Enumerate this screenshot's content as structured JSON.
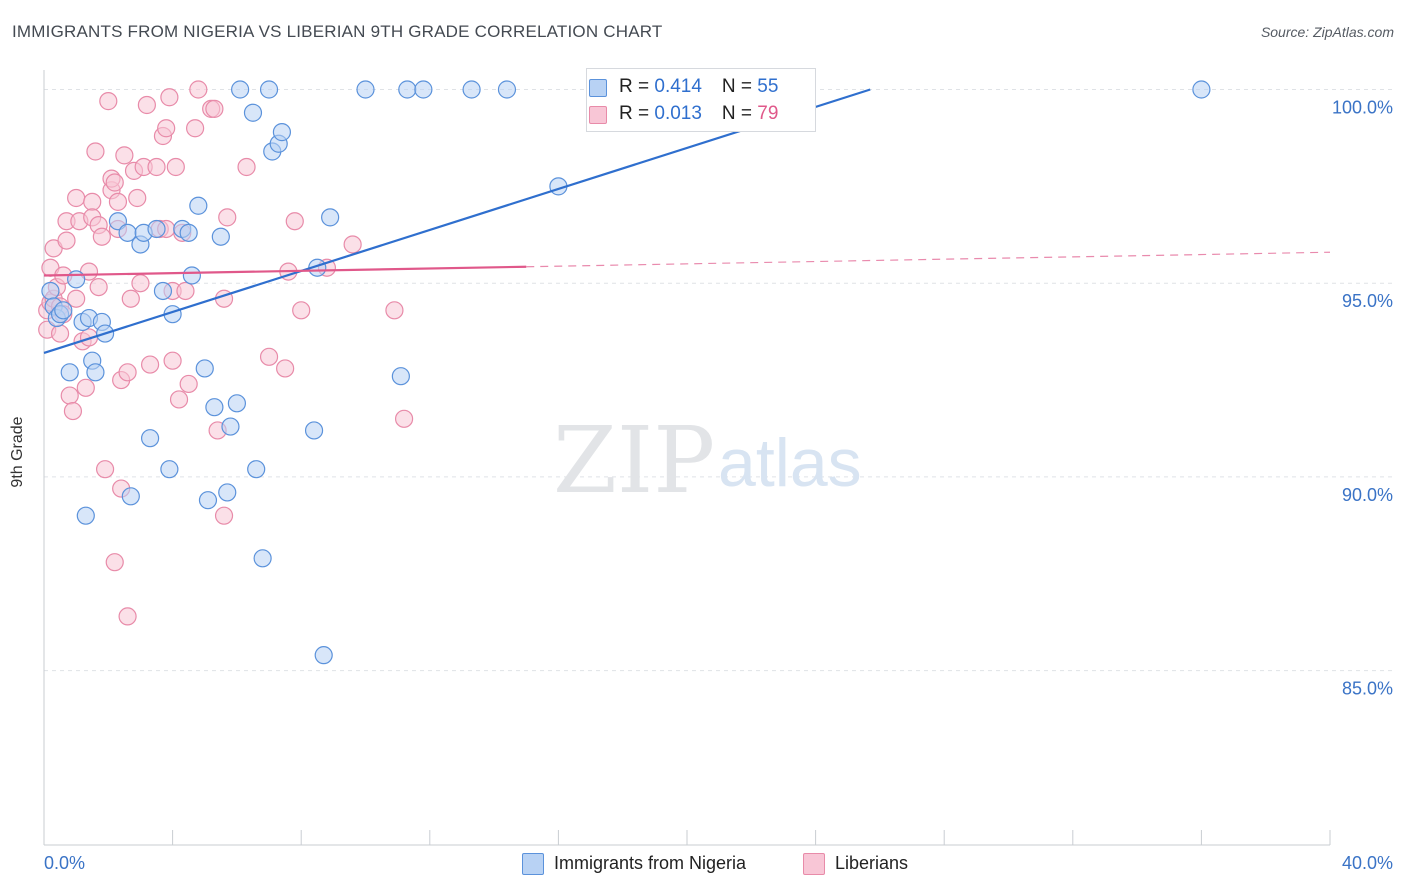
{
  "header": {
    "title": "IMMIGRANTS FROM NIGERIA VS LIBERIAN 9TH GRADE CORRELATION CHART",
    "source": "Source: ZipAtlas.com"
  },
  "watermark": {
    "zip": "ZIP",
    "atlas": "atlas"
  },
  "colors": {
    "blue_fill": "#b8d2f4",
    "blue_stroke": "#5b92db",
    "blue_line": "#2f6fce",
    "pink_fill": "#f8c6d6",
    "pink_stroke": "#e88ba9",
    "pink_line": "#e0588a",
    "tick_label": "#3a73c6"
  },
  "legend": {
    "rows": [
      {
        "r_label": "R = ",
        "r_value": "0.414",
        "n_label": "N = ",
        "n_value": "55"
      },
      {
        "r_label": "R = ",
        "r_value": "0.013",
        "n_label": "N = ",
        "n_value": "79"
      }
    ]
  },
  "bottom_legend": {
    "series1": "Immigrants from Nigeria",
    "series2": "Liberians"
  },
  "chart_data": {
    "type": "scatter",
    "title": "IMMIGRANTS FROM NIGERIA VS LIBERIAN 9TH GRADE CORRELATION CHART",
    "xlabel": "",
    "ylabel": "9th Grade",
    "xlim": [
      0,
      40
    ],
    "ylim": [
      80.5,
      100.4
    ],
    "x_tick_labels": [
      {
        "value": 0,
        "label": "0.0%"
      },
      {
        "value": 40,
        "label": "40.0%"
      }
    ],
    "y_tick_labels": [
      {
        "value": 100,
        "label": "100.0%"
      },
      {
        "value": 95,
        "label": "95.0%"
      },
      {
        "value": 90,
        "label": "90.0%"
      },
      {
        "value": 85,
        "label": "85.0%"
      }
    ],
    "series": [
      {
        "name": "Immigrants from Nigeria",
        "color": "blue",
        "r": 0.414,
        "n": 55,
        "trend": {
          "x0": 0,
          "y0": 93.2,
          "x1": 25.7,
          "y1": 100,
          "solid_to": 25.7
        },
        "points": [
          [
            0.2,
            94.8
          ],
          [
            0.3,
            94.4
          ],
          [
            0.4,
            94.1
          ],
          [
            0.5,
            94.2
          ],
          [
            0.6,
            94.3
          ],
          [
            0.8,
            92.7
          ],
          [
            1.0,
            95.1
          ],
          [
            1.2,
            94.0
          ],
          [
            1.3,
            89.0
          ],
          [
            1.4,
            94.1
          ],
          [
            1.5,
            93.0
          ],
          [
            1.6,
            92.7
          ],
          [
            1.8,
            94.0
          ],
          [
            1.9,
            93.7
          ],
          [
            2.3,
            96.6
          ],
          [
            2.6,
            96.3
          ],
          [
            2.7,
            89.5
          ],
          [
            3.0,
            96.0
          ],
          [
            3.1,
            96.3
          ],
          [
            3.3,
            91.0
          ],
          [
            3.5,
            96.4
          ],
          [
            3.7,
            94.8
          ],
          [
            3.9,
            90.2
          ],
          [
            4.0,
            94.2
          ],
          [
            4.3,
            96.4
          ],
          [
            4.5,
            96.3
          ],
          [
            4.6,
            95.2
          ],
          [
            4.8,
            97.0
          ],
          [
            5.0,
            92.8
          ],
          [
            5.1,
            89.4
          ],
          [
            5.3,
            91.8
          ],
          [
            5.5,
            96.2
          ],
          [
            5.7,
            89.6
          ],
          [
            5.8,
            91.3
          ],
          [
            6.0,
            91.9
          ],
          [
            6.1,
            100.0
          ],
          [
            6.5,
            99.4
          ],
          [
            6.6,
            90.2
          ],
          [
            6.8,
            87.9
          ],
          [
            7.0,
            100.0
          ],
          [
            7.1,
            98.4
          ],
          [
            7.3,
            98.6
          ],
          [
            7.4,
            98.9
          ],
          [
            8.4,
            91.2
          ],
          [
            8.5,
            95.4
          ],
          [
            8.7,
            85.4
          ],
          [
            8.9,
            96.7
          ],
          [
            10.0,
            100.0
          ],
          [
            11.3,
            100.0
          ],
          [
            11.8,
            100.0
          ],
          [
            11.1,
            92.6
          ],
          [
            13.3,
            100.0
          ],
          [
            14.4,
            100.0
          ],
          [
            16.0,
            97.5
          ],
          [
            36.0,
            100.0
          ]
        ]
      },
      {
        "name": "Liberians",
        "color": "pink",
        "r": 0.013,
        "n": 79,
        "trend": {
          "x0": 0,
          "y0": 95.2,
          "x1": 40,
          "y1": 95.8,
          "solid_to": 15.0
        },
        "points": [
          [
            0.1,
            94.3
          ],
          [
            0.1,
            93.8
          ],
          [
            0.2,
            95.4
          ],
          [
            0.2,
            94.5
          ],
          [
            0.3,
            95.9
          ],
          [
            0.3,
            94.6
          ],
          [
            0.4,
            94.9
          ],
          [
            0.5,
            94.4
          ],
          [
            0.5,
            93.7
          ],
          [
            0.6,
            95.2
          ],
          [
            0.7,
            96.6
          ],
          [
            0.7,
            96.1
          ],
          [
            0.8,
            92.1
          ],
          [
            0.9,
            91.7
          ],
          [
            1.0,
            97.2
          ],
          [
            1.0,
            94.6
          ],
          [
            1.1,
            96.6
          ],
          [
            1.2,
            93.5
          ],
          [
            1.3,
            92.3
          ],
          [
            1.4,
            95.3
          ],
          [
            1.4,
            93.6
          ],
          [
            1.5,
            97.1
          ],
          [
            1.5,
            96.7
          ],
          [
            1.6,
            98.4
          ],
          [
            1.7,
            96.5
          ],
          [
            1.7,
            94.9
          ],
          [
            1.8,
            96.2
          ],
          [
            1.9,
            90.2
          ],
          [
            2.0,
            99.7
          ],
          [
            2.1,
            97.4
          ],
          [
            2.1,
            97.7
          ],
          [
            2.2,
            97.6
          ],
          [
            2.2,
            87.8
          ],
          [
            2.3,
            97.1
          ],
          [
            2.4,
            92.5
          ],
          [
            2.4,
            89.7
          ],
          [
            2.5,
            98.3
          ],
          [
            2.6,
            92.7
          ],
          [
            2.6,
            86.4
          ],
          [
            2.7,
            94.6
          ],
          [
            2.8,
            97.9
          ],
          [
            2.9,
            97.2
          ],
          [
            3.0,
            95.0
          ],
          [
            3.1,
            98.0
          ],
          [
            3.2,
            99.6
          ],
          [
            3.3,
            92.9
          ],
          [
            3.5,
            98.0
          ],
          [
            3.6,
            96.4
          ],
          [
            3.7,
            98.8
          ],
          [
            3.8,
            99.0
          ],
          [
            3.9,
            99.8
          ],
          [
            4.0,
            93.0
          ],
          [
            4.0,
            94.8
          ],
          [
            4.1,
            98.0
          ],
          [
            4.2,
            92.0
          ],
          [
            4.3,
            96.3
          ],
          [
            4.4,
            94.8
          ],
          [
            4.5,
            92.4
          ],
          [
            4.7,
            99.0
          ],
          [
            4.8,
            100.0
          ],
          [
            5.2,
            99.5
          ],
          [
            5.3,
            99.5
          ],
          [
            5.4,
            91.2
          ],
          [
            5.6,
            94.6
          ],
          [
            5.6,
            89.0
          ],
          [
            5.7,
            96.7
          ],
          [
            6.3,
            98.0
          ],
          [
            7.0,
            93.1
          ],
          [
            7.5,
            92.8
          ],
          [
            7.6,
            95.3
          ],
          [
            7.8,
            96.6
          ],
          [
            8.0,
            94.3
          ],
          [
            8.8,
            95.4
          ],
          [
            9.6,
            96.0
          ],
          [
            10.9,
            94.3
          ],
          [
            11.2,
            91.5
          ],
          [
            0.6,
            94.2
          ],
          [
            3.8,
            96.4
          ],
          [
            2.3,
            96.4
          ]
        ]
      }
    ]
  }
}
